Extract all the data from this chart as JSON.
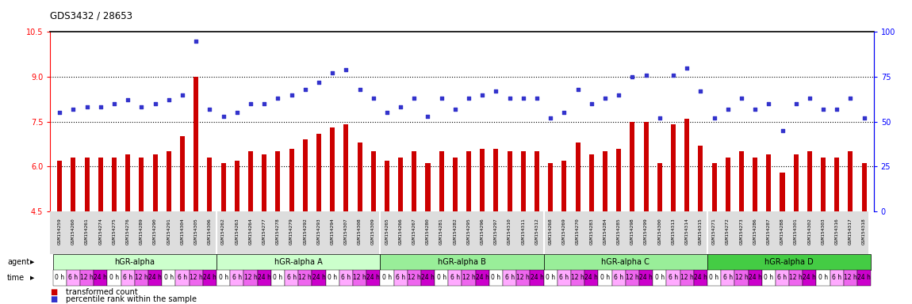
{
  "title": "GDS3432 / 28653",
  "ylim_left": [
    4.5,
    10.5
  ],
  "ylim_right": [
    0,
    100
  ],
  "yticks_left": [
    4.5,
    6.0,
    7.5,
    9.0,
    10.5
  ],
  "yticks_right": [
    0,
    25,
    50,
    75,
    100
  ],
  "hlines": [
    9.0,
    7.5,
    6.0
  ],
  "bar_color": "#cc0000",
  "dot_color": "#3333cc",
  "group_names": [
    "hGR-alpha",
    "hGR-alpha A",
    "hGR-alpha B",
    "hGR-alpha C",
    "hGR-alpha D"
  ],
  "group_colors": [
    "#ccffcc",
    "#ccffcc",
    "#99ee99",
    "#99ee99",
    "#44cc44"
  ],
  "group_sizes": [
    12,
    12,
    12,
    12,
    12
  ],
  "time_labels": [
    "0 h",
    "6 h",
    "12 h",
    "24 h"
  ],
  "time_colors": [
    "#ffffff",
    "#ffaaff",
    "#ee66ee",
    "#cc00cc"
  ],
  "gsm_labels": [
    "GSM154259",
    "GSM154260",
    "GSM154261",
    "GSM154274",
    "GSM154275",
    "GSM154276",
    "GSM154289",
    "GSM154290",
    "GSM154291",
    "GSM154304",
    "GSM154305",
    "GSM154306",
    "GSM154262",
    "GSM154263",
    "GSM154264",
    "GSM154277",
    "GSM154278",
    "GSM154279",
    "GSM154292",
    "GSM154293",
    "GSM154294",
    "GSM154307",
    "GSM154308",
    "GSM154309",
    "GSM154265",
    "GSM154266",
    "GSM154267",
    "GSM154280",
    "GSM154281",
    "GSM154282",
    "GSM154295",
    "GSM154296",
    "GSM154297",
    "GSM154310",
    "GSM154311",
    "GSM154312",
    "GSM154268",
    "GSM154269",
    "GSM154270",
    "GSM154283",
    "GSM154284",
    "GSM154285",
    "GSM154298",
    "GSM154299",
    "GSM154300",
    "GSM154313",
    "GSM154314",
    "GSM154315",
    "GSM154271",
    "GSM154272",
    "GSM154273",
    "GSM154286",
    "GSM154287",
    "GSM154288",
    "GSM154301",
    "GSM154302",
    "GSM154303",
    "GSM154316",
    "GSM154317",
    "GSM154318"
  ],
  "bar_values": [
    6.2,
    6.3,
    6.3,
    6.3,
    6.3,
    6.4,
    6.3,
    6.4,
    6.5,
    7.0,
    9.0,
    6.3,
    6.1,
    6.2,
    6.5,
    6.4,
    6.5,
    6.6,
    6.9,
    7.1,
    7.3,
    7.4,
    6.8,
    6.5,
    6.2,
    6.3,
    6.5,
    6.1,
    6.5,
    6.3,
    6.5,
    6.6,
    6.6,
    6.5,
    6.5,
    6.5,
    6.1,
    6.2,
    6.8,
    6.4,
    6.5,
    6.6,
    7.5,
    7.5,
    6.1,
    7.4,
    7.6,
    6.7,
    6.1,
    6.3,
    6.5,
    6.3,
    6.4,
    5.8,
    6.4,
    6.5,
    6.3,
    6.3,
    6.5,
    6.1
  ],
  "dot_values": [
    55,
    57,
    58,
    58,
    60,
    62,
    58,
    60,
    62,
    65,
    95,
    57,
    53,
    55,
    60,
    60,
    63,
    65,
    68,
    72,
    77,
    79,
    68,
    63,
    55,
    58,
    63,
    53,
    63,
    57,
    63,
    65,
    67,
    63,
    63,
    63,
    52,
    55,
    68,
    60,
    63,
    65,
    75,
    76,
    52,
    76,
    80,
    67,
    52,
    57,
    63,
    57,
    60,
    45,
    60,
    63,
    57,
    57,
    63,
    52
  ]
}
